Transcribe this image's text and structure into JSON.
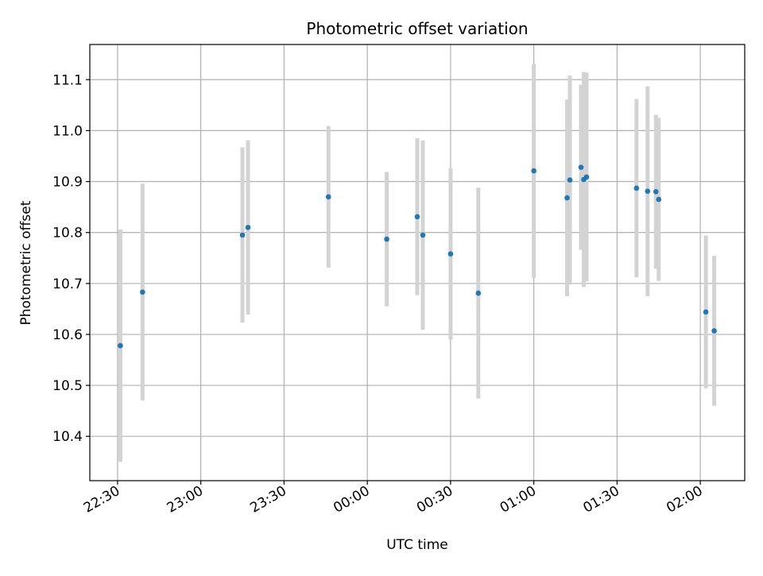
{
  "chart_data": {
    "type": "scatter",
    "title": "Photometric offset variation",
    "xlabel": "UTC time",
    "ylabel": "Photometric offset",
    "x_ticks": [
      {
        "time": "22:30",
        "label": "22:30"
      },
      {
        "time": "23:00",
        "label": "23:00"
      },
      {
        "time": "23:30",
        "label": "23:30"
      },
      {
        "time": "00:00",
        "label": "00:00"
      },
      {
        "time": "00:30",
        "label": "00:30"
      },
      {
        "time": "01:00",
        "label": "01:00"
      },
      {
        "time": "01:30",
        "label": "01:30"
      },
      {
        "time": "02:00",
        "label": "02:00"
      }
    ],
    "y_ticks": [
      10.4,
      10.5,
      10.6,
      10.7,
      10.8,
      10.9,
      11.0,
      11.1
    ],
    "xlim": [
      "22:20",
      "02:16"
    ],
    "ylim": [
      10.313,
      11.169
    ],
    "grid": true,
    "point_color": "#1f77b4",
    "errorbar_color": "#d3d3d3",
    "points": [
      {
        "time": "22:31",
        "y": 10.578,
        "yerr": 0.228
      },
      {
        "time": "22:39",
        "y": 10.683,
        "yerr": 0.213
      },
      {
        "time": "23:15",
        "y": 10.795,
        "yerr": 0.172
      },
      {
        "time": "23:17",
        "y": 10.81,
        "yerr": 0.171
      },
      {
        "time": "23:46",
        "y": 10.87,
        "yerr": 0.139
      },
      {
        "time": "00:07",
        "y": 10.787,
        "yerr": 0.132
      },
      {
        "time": "00:18",
        "y": 10.831,
        "yerr": 0.154
      },
      {
        "time": "00:20",
        "y": 10.795,
        "yerr": 0.186
      },
      {
        "time": "00:30",
        "y": 10.758,
        "yerr": 0.168
      },
      {
        "time": "00:40",
        "y": 10.681,
        "yerr": 0.207
      },
      {
        "time": "01:00",
        "y": 10.921,
        "yerr": 0.21
      },
      {
        "time": "01:12",
        "y": 10.868,
        "yerr": 0.193
      },
      {
        "time": "01:13",
        "y": 10.903,
        "yerr": 0.205
      },
      {
        "time": "01:17",
        "y": 10.928,
        "yerr": 0.162
      },
      {
        "time": "01:18",
        "y": 10.904,
        "yerr": 0.211
      },
      {
        "time": "01:19",
        "y": 10.909,
        "yerr": 0.205
      },
      {
        "time": "01:37",
        "y": 10.887,
        "yerr": 0.175
      },
      {
        "time": "01:41",
        "y": 10.881,
        "yerr": 0.206
      },
      {
        "time": "01:44",
        "y": 10.88,
        "yerr": 0.151
      },
      {
        "time": "01:45",
        "y": 10.865,
        "yerr": 0.16
      },
      {
        "time": "02:02",
        "y": 10.644,
        "yerr": 0.15
      },
      {
        "time": "02:05",
        "y": 10.607,
        "yerr": 0.147
      }
    ]
  }
}
